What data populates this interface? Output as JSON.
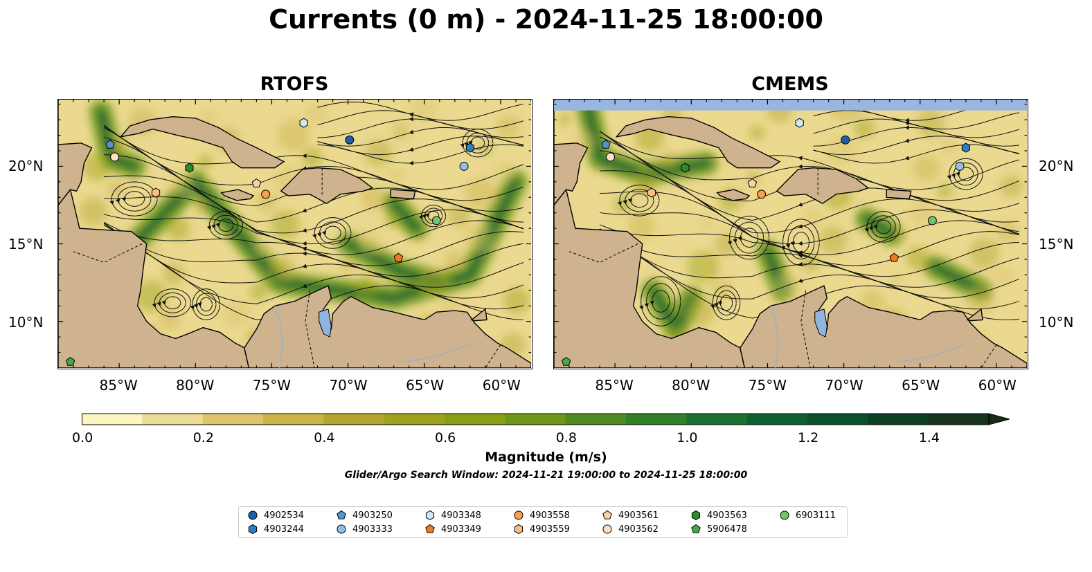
{
  "title": "Currents (0 m) - 2024-11-25 18:00:00",
  "panels": [
    {
      "name": "RTOFS"
    },
    {
      "name": "CMEMS"
    }
  ],
  "map_extent": {
    "lon": [
      -89,
      -58
    ],
    "lat": [
      7,
      24.3
    ]
  },
  "lat_ticks": [
    "20°N",
    "15°N",
    "10°N"
  ],
  "lon_ticks": [
    "85°W",
    "80°W",
    "75°W",
    "70°W",
    "65°W",
    "60°W"
  ],
  "colorbar": {
    "label": "Magnitude (m/s)",
    "ticks": [
      "0.0",
      "0.2",
      "0.4",
      "0.6",
      "0.8",
      "1.0",
      "1.2",
      "1.4"
    ],
    "min": 0.0,
    "max": 1.5,
    "extend": "max",
    "colors": [
      "#fdf5c0",
      "#ecdd96",
      "#dcc56b",
      "#c9b44a",
      "#b3a630",
      "#a0a21c",
      "#86a012",
      "#6d9618",
      "#4e8a22",
      "#33802a",
      "#1c7030",
      "#0f6030",
      "#0b5028",
      "#0e4022",
      "#16331c",
      "#1c2a18"
    ]
  },
  "search_window": "Glider/Argo Search Window: 2024-11-21 19:00:00 to 2024-11-25 18:00:00",
  "legend": [
    {
      "id": "4902534",
      "shape": "circle",
      "color": "#1f5fa8"
    },
    {
      "id": "4903244",
      "shape": "hexagon",
      "color": "#2f7ec2"
    },
    {
      "id": "4903250",
      "shape": "pentagon",
      "color": "#4f95d0"
    },
    {
      "id": "4903333",
      "shape": "circle",
      "color": "#8ec0e8"
    },
    {
      "id": "4903348",
      "shape": "hexagon",
      "color": "#cfe6f7"
    },
    {
      "id": "4903349",
      "shape": "pentagon",
      "color": "#f07a1a"
    },
    {
      "id": "4903558",
      "shape": "circle",
      "color": "#f7a050"
    },
    {
      "id": "4903559",
      "shape": "hexagon",
      "color": "#fbbb82"
    },
    {
      "id": "4903561",
      "shape": "pentagon",
      "color": "#fdd0a6"
    },
    {
      "id": "4903562",
      "shape": "circle",
      "color": "#fde2c8"
    },
    {
      "id": "4903563",
      "shape": "hexagon",
      "color": "#2e8a2e"
    },
    {
      "id": "5906478",
      "shape": "pentagon",
      "color": "#48a848"
    },
    {
      "id": "6903111",
      "shape": "circle",
      "color": "#74c46a"
    }
  ],
  "floats": [
    {
      "id": "4902534",
      "lon": -69.9,
      "lat": 21.7
    },
    {
      "id": "4903244",
      "lon": -62.0,
      "lat": 21.2
    },
    {
      "id": "4903250",
      "lon": -85.6,
      "lat": 21.4
    },
    {
      "id": "4903333",
      "lon": -62.4,
      "lat": 20.0
    },
    {
      "id": "4903348",
      "lon": -72.9,
      "lat": 22.8
    },
    {
      "id": "4903349",
      "lon": -66.7,
      "lat": 14.1
    },
    {
      "id": "4903558",
      "lon": -75.4,
      "lat": 18.2
    },
    {
      "id": "4903559",
      "lon": -82.6,
      "lat": 18.3
    },
    {
      "id": "4903561",
      "lon": -76.0,
      "lat": 18.9
    },
    {
      "id": "4903562",
      "lon": -85.3,
      "lat": 20.6
    },
    {
      "id": "4903563",
      "lon": -80.4,
      "lat": 19.9
    },
    {
      "id": "5906478",
      "lon": -88.2,
      "lat": 7.4
    },
    {
      "id": "6903111",
      "lon": -64.2,
      "lat": 16.5
    }
  ],
  "colors": {
    "land": "#cfb38e",
    "ocean_base": "#ead98f",
    "lake": "#8fb4e0",
    "river": "#9ab0c8",
    "nodata": "#98b6e0"
  }
}
